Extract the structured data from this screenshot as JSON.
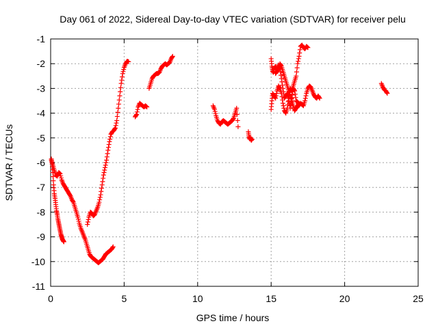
{
  "chart_data": {
    "type": "scatter",
    "title": "Day 061 of 2022, Sidereal Day-to-day VTEC variation (SDTVAR) for receiver pelu",
    "xlabel": "GPS time / hours",
    "ylabel": "SDTVAR / TECUs",
    "xlim": [
      0,
      25
    ],
    "ylim": [
      -11,
      -1
    ],
    "xticks": [
      0,
      5,
      10,
      15,
      20,
      25
    ],
    "yticks": [
      -11,
      -10,
      -9,
      -8,
      -7,
      -6,
      -5,
      -4,
      -3,
      -2,
      -1
    ],
    "grid": true,
    "marker": "plus",
    "series": [
      {
        "name": "SDTVAR",
        "color": "#ff0000",
        "segments": [
          {
            "x": [
              0.05,
              0.1,
              0.15,
              0.2,
              0.25,
              0.3,
              0.35,
              0.4,
              0.45,
              0.5,
              0.55,
              0.6,
              0.65,
              0.7,
              0.75,
              0.8,
              0.85,
              0.9
            ],
            "y": [
              -5.85,
              -6.05,
              -6.4,
              -6.9,
              -7.25,
              -7.45,
              -7.7,
              -7.95,
              -8.1,
              -8.3,
              -8.45,
              -8.6,
              -8.75,
              -8.9,
              -9.0,
              -9.1,
              -9.15,
              -9.2
            ]
          },
          {
            "x": [
              0.05,
              0.15,
              0.25,
              0.35,
              0.45,
              0.55,
              0.65,
              0.75,
              0.85,
              0.95,
              1.05,
              1.15,
              1.25,
              1.35,
              1.45,
              1.55,
              1.65,
              1.75,
              1.85,
              1.95,
              2.05,
              2.15,
              2.25,
              2.35,
              2.45,
              2.55,
              2.65,
              2.75,
              2.85,
              2.95,
              3.05,
              3.15,
              3.25,
              3.35,
              3.45,
              3.55,
              3.65,
              3.75,
              3.85,
              3.95,
              4.05,
              4.15,
              4.25
            ],
            "y": [
              -5.9,
              -6.1,
              -6.3,
              -6.5,
              -6.55,
              -6.4,
              -6.45,
              -6.7,
              -6.85,
              -6.95,
              -7.05,
              -7.15,
              -7.25,
              -7.35,
              -7.5,
              -7.6,
              -7.8,
              -8.0,
              -8.2,
              -8.45,
              -8.65,
              -8.8,
              -8.95,
              -9.1,
              -9.3,
              -9.5,
              -9.7,
              -9.8,
              -9.85,
              -9.9,
              -9.95,
              -10.0,
              -10.05,
              -10.0,
              -9.95,
              -9.9,
              -9.8,
              -9.7,
              -9.65,
              -9.6,
              -9.55,
              -9.5,
              -9.4
            ]
          },
          {
            "x": [
              2.5,
              2.6,
              2.7,
              2.8,
              2.9,
              3.0,
              3.1,
              3.2,
              3.3,
              3.4,
              3.5,
              3.6,
              3.7,
              3.8,
              3.9,
              4.0,
              4.1,
              4.2,
              4.3,
              4.4,
              4.5,
              4.6,
              4.7,
              4.8,
              4.9,
              5.0,
              5.1,
              5.2,
              5.3
            ],
            "y": [
              -8.5,
              -8.2,
              -8.0,
              -8.05,
              -8.15,
              -8.1,
              -7.95,
              -7.8,
              -7.6,
              -7.3,
              -6.9,
              -6.5,
              -6.2,
              -5.9,
              -5.5,
              -5.15,
              -4.85,
              -4.75,
              -4.7,
              -4.6,
              -4.3,
              -3.8,
              -3.3,
              -2.8,
              -2.4,
              -2.15,
              -2.0,
              -1.9,
              -1.92
            ]
          },
          {
            "x": [
              5.75,
              5.85,
              5.95,
              6.05,
              6.15,
              6.25,
              6.35,
              6.45,
              6.55
            ],
            "y": [
              -4.15,
              -4.05,
              -3.75,
              -3.6,
              -3.65,
              -3.7,
              -3.75,
              -3.7,
              -3.75
            ]
          },
          {
            "x": [
              6.7,
              6.8,
              6.9,
              7.0,
              7.1,
              7.2,
              7.3,
              7.4,
              7.5,
              7.6,
              7.7,
              7.8,
              7.9,
              8.0,
              8.1,
              8.2,
              8.3
            ],
            "y": [
              -3.0,
              -2.8,
              -2.6,
              -2.5,
              -2.45,
              -2.4,
              -2.4,
              -2.35,
              -2.2,
              -2.1,
              -2.05,
              -2.0,
              -2.05,
              -2.0,
              -1.95,
              -1.8,
              -1.7
            ]
          },
          {
            "x": [
              11.05,
              11.15,
              11.25,
              11.35,
              11.45,
              11.55,
              11.65,
              11.75,
              11.85,
              11.95,
              12.05,
              12.15,
              12.25,
              12.35,
              12.45,
              12.55,
              12.65,
              12.75
            ],
            "y": [
              -3.7,
              -3.85,
              -4.1,
              -4.3,
              -4.4,
              -4.45,
              -4.35,
              -4.3,
              -4.35,
              -4.4,
              -4.45,
              -4.4,
              -4.35,
              -4.3,
              -4.2,
              -4.0,
              -3.8,
              -4.55
            ]
          },
          {
            "x": [
              13.45,
              13.5,
              13.55,
              13.6,
              13.65,
              13.7
            ],
            "y": [
              -4.75,
              -4.95,
              -5.05,
              -5.0,
              -5.1,
              -5.05
            ]
          },
          {
            "x": [
              15.0,
              15.05,
              15.1,
              15.15,
              15.2,
              15.3,
              15.4,
              15.5,
              15.6,
              15.7,
              15.8,
              15.9,
              16.0,
              16.1,
              16.2,
              16.3,
              16.4,
              16.5,
              16.6,
              16.7,
              16.8,
              16.9,
              17.0,
              17.1,
              17.2,
              17.3,
              17.4,
              17.5,
              17.6,
              17.7,
              17.8,
              17.9,
              18.0,
              18.1,
              18.2,
              18.3
            ],
            "y": [
              -1.8,
              -2.1,
              -2.3,
              -2.35,
              -2.2,
              -2.1,
              -2.3,
              -2.05,
              -2.2,
              -2.6,
              -3.0,
              -3.4,
              -3.3,
              -3.2,
              -3.5,
              -3.8,
              -3.4,
              -3.0,
              -3.1,
              -3.5,
              -3.55,
              -3.7,
              -3.6,
              -3.65,
              -3.7,
              -3.5,
              -3.2,
              -3.0,
              -2.9,
              -2.95,
              -3.1,
              -3.25,
              -3.35,
              -3.4,
              -3.3,
              -3.4
            ]
          },
          {
            "x": [
              15.0,
              15.05,
              15.1,
              15.2,
              15.3,
              15.4,
              15.5,
              15.6,
              15.7,
              15.8,
              15.9,
              16.0,
              16.1,
              16.2,
              16.3,
              16.4,
              16.5,
              16.6,
              16.7,
              16.8,
              16.9,
              17.0,
              17.1,
              17.2,
              17.3,
              17.4,
              17.5
            ],
            "y": [
              -3.85,
              -3.5,
              -3.2,
              -3.3,
              -3.4,
              -3.1,
              -2.9,
              -3.0,
              -3.2,
              -3.6,
              -3.9,
              -4.0,
              -3.8,
              -3.4,
              -3.0,
              -3.1,
              -2.9,
              -2.7,
              -2.5,
              -2.0,
              -1.7,
              -1.3,
              -1.25,
              -1.35,
              -1.4,
              -1.3,
              -1.35
            ]
          },
          {
            "x": [
              15.3,
              15.4,
              15.5,
              15.6,
              15.7,
              15.8,
              15.9,
              16.0,
              16.1,
              16.2,
              16.3,
              16.4,
              16.5,
              16.6,
              16.7,
              16.8,
              16.9
            ],
            "y": [
              -2.4,
              -2.3,
              -2.2,
              -2.0,
              -2.1,
              -2.3,
              -2.5,
              -2.7,
              -2.9,
              -3.1,
              -3.3,
              -3.5,
              -3.7,
              -3.9,
              -3.8,
              -3.7,
              -3.6
            ]
          },
          {
            "x": [
              22.5,
              22.6,
              22.7,
              22.8,
              22.9
            ],
            "y": [
              -2.8,
              -2.95,
              -3.05,
              -3.1,
              -3.2
            ]
          }
        ]
      }
    ]
  }
}
